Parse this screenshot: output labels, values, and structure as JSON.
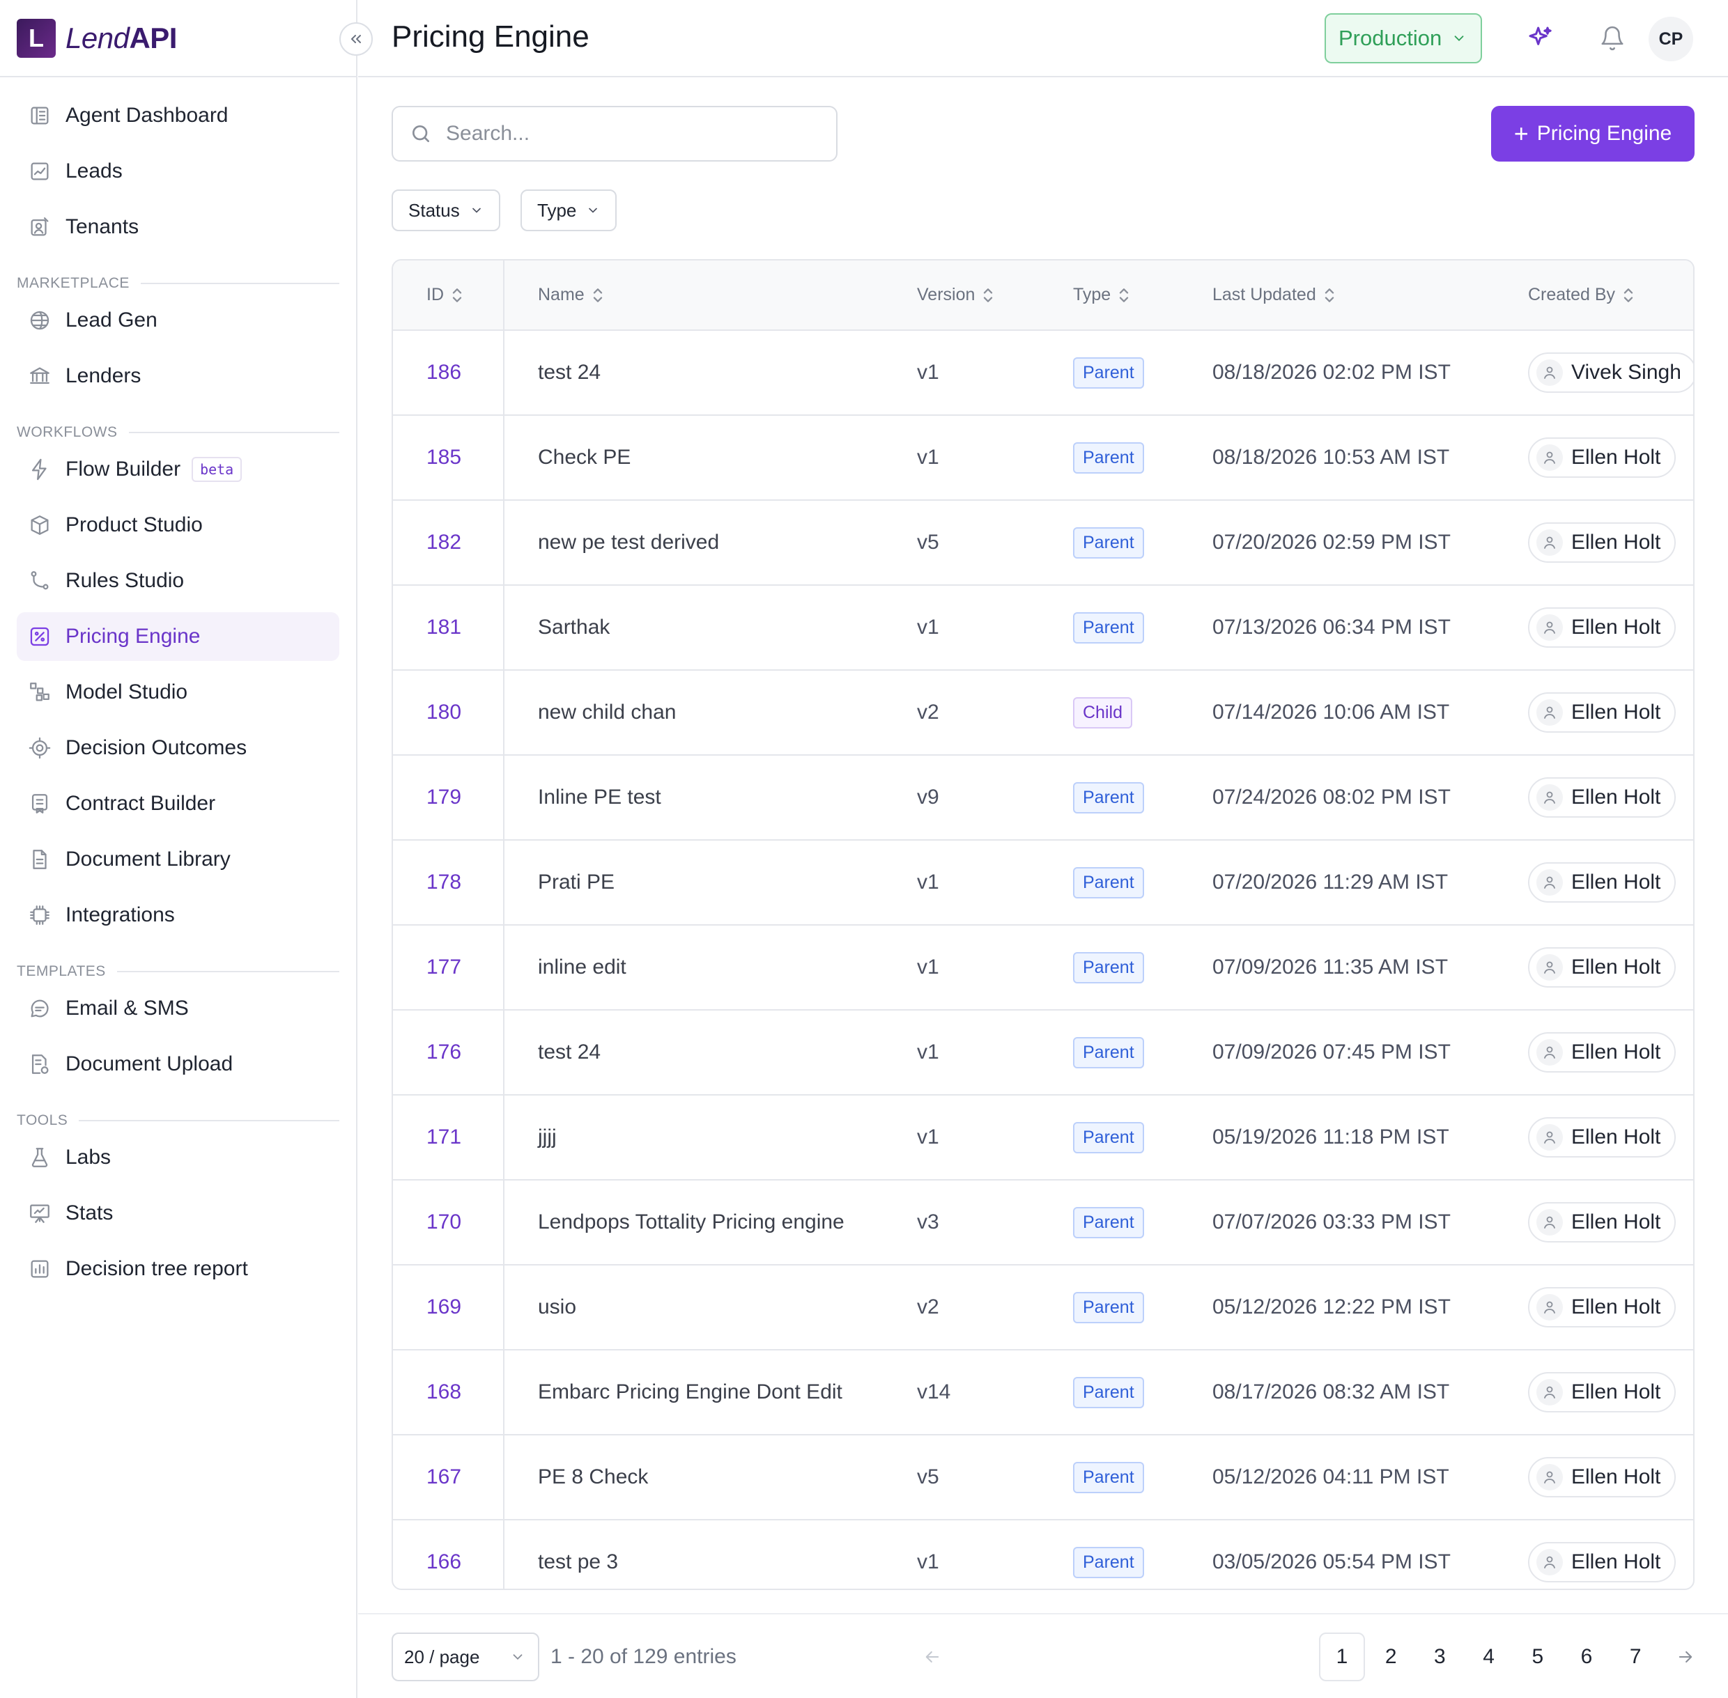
{
  "brand": {
    "letter": "L",
    "name_lend": "Lend",
    "name_api": "API"
  },
  "sidebar": {
    "top_items": [
      {
        "label": "Agent Dashboard",
        "icon": "dashboard-icon"
      },
      {
        "label": "Leads",
        "icon": "chart-up-icon"
      },
      {
        "label": "Tenants",
        "icon": "tenant-icon"
      }
    ],
    "sections": [
      {
        "title": "MARKETPLACE",
        "items": [
          {
            "label": "Lead Gen",
            "icon": "globe-icon"
          },
          {
            "label": "Lenders",
            "icon": "bank-icon"
          }
        ]
      },
      {
        "title": "WORKFLOWS",
        "items": [
          {
            "label": "Flow Builder",
            "icon": "bolt-icon",
            "badge": "beta"
          },
          {
            "label": "Product Studio",
            "icon": "box-icon"
          },
          {
            "label": "Rules Studio",
            "icon": "branch-icon"
          },
          {
            "label": "Pricing Engine",
            "icon": "percent-icon",
            "active": true
          },
          {
            "label": "Model Studio",
            "icon": "blocks-icon"
          },
          {
            "label": "Decision Outcomes",
            "icon": "target-icon"
          },
          {
            "label": "Contract Builder",
            "icon": "contract-icon"
          },
          {
            "label": "Document Library",
            "icon": "document-icon"
          },
          {
            "label": "Integrations",
            "icon": "chip-icon"
          }
        ]
      },
      {
        "title": "TEMPLATES",
        "items": [
          {
            "label": "Email & SMS",
            "icon": "message-icon"
          },
          {
            "label": "Document Upload",
            "icon": "upload-doc-icon"
          }
        ]
      },
      {
        "title": "TOOLS",
        "items": [
          {
            "label": "Labs",
            "icon": "flask-icon"
          },
          {
            "label": "Stats",
            "icon": "presentation-icon"
          },
          {
            "label": "Decision tree report",
            "icon": "bar-chart-icon"
          }
        ]
      }
    ]
  },
  "header": {
    "title": "Pricing Engine",
    "environment": "Production",
    "avatar_initials": "CP"
  },
  "toolbar": {
    "search_placeholder": "Search...",
    "add_button_label": "Pricing Engine",
    "filters": [
      "Status",
      "Type"
    ]
  },
  "table": {
    "columns": [
      "ID",
      "Name",
      "Version",
      "Type",
      "Last Updated",
      "Created By"
    ],
    "rows": [
      {
        "id": "186",
        "name": "test 24",
        "version": "v1",
        "type": "Parent",
        "updated": "08/18/2026 02:02 PM IST",
        "creator": "Vivek Singh"
      },
      {
        "id": "185",
        "name": "Check PE",
        "version": "v1",
        "type": "Parent",
        "updated": "08/18/2026 10:53 AM IST",
        "creator": "Ellen Holt"
      },
      {
        "id": "182",
        "name": "new pe test derived",
        "version": "v5",
        "type": "Parent",
        "updated": "07/20/2026 02:59 PM IST",
        "creator": "Ellen Holt"
      },
      {
        "id": "181",
        "name": "Sarthak",
        "version": "v1",
        "type": "Parent",
        "updated": "07/13/2026 06:34 PM IST",
        "creator": "Ellen Holt"
      },
      {
        "id": "180",
        "name": "new child chan",
        "version": "v2",
        "type": "Child",
        "updated": "07/14/2026 10:06 AM IST",
        "creator": "Ellen Holt"
      },
      {
        "id": "179",
        "name": "Inline PE test",
        "version": "v9",
        "type": "Parent",
        "updated": "07/24/2026 08:02 PM IST",
        "creator": "Ellen Holt"
      },
      {
        "id": "178",
        "name": "Prati PE",
        "version": "v1",
        "type": "Parent",
        "updated": "07/20/2026 11:29 AM IST",
        "creator": "Ellen Holt"
      },
      {
        "id": "177",
        "name": "inline edit",
        "version": "v1",
        "type": "Parent",
        "updated": "07/09/2026 11:35 AM IST",
        "creator": "Ellen Holt"
      },
      {
        "id": "176",
        "name": "test 24",
        "version": "v1",
        "type": "Parent",
        "updated": "07/09/2026 07:45 PM IST",
        "creator": "Ellen Holt"
      },
      {
        "id": "171",
        "name": "jjjj",
        "version": "v1",
        "type": "Parent",
        "updated": "05/19/2026 11:18 PM IST",
        "creator": "Ellen Holt"
      },
      {
        "id": "170",
        "name": "Lendpops Tottality Pricing engine",
        "version": "v3",
        "type": "Parent",
        "updated": "07/07/2026 03:33 PM IST",
        "creator": "Ellen Holt"
      },
      {
        "id": "169",
        "name": "usio",
        "version": "v2",
        "type": "Parent",
        "updated": "05/12/2026 12:22 PM IST",
        "creator": "Ellen Holt"
      },
      {
        "id": "168",
        "name": "Embarc Pricing Engine Dont Edit",
        "version": "v14",
        "type": "Parent",
        "updated": "08/17/2026 08:32 AM IST",
        "creator": "Ellen Holt"
      },
      {
        "id": "167",
        "name": "PE 8 Check",
        "version": "v5",
        "type": "Parent",
        "updated": "05/12/2026 04:11 PM IST",
        "creator": "Ellen Holt"
      },
      {
        "id": "166",
        "name": "test pe 3",
        "version": "v1",
        "type": "Parent",
        "updated": "03/05/2026 05:54 PM IST",
        "creator": "Ellen Holt"
      }
    ]
  },
  "footer": {
    "page_size": "20 / page",
    "entries_text": "1 - 20 of 129 entries",
    "pages": [
      "1",
      "2",
      "3",
      "4",
      "5",
      "6",
      "7"
    ],
    "current_page": "1"
  },
  "colors": {
    "accent": "#7b3fe4",
    "env_green": "#2f9f58",
    "parent_blue": "#2f5fd8"
  }
}
